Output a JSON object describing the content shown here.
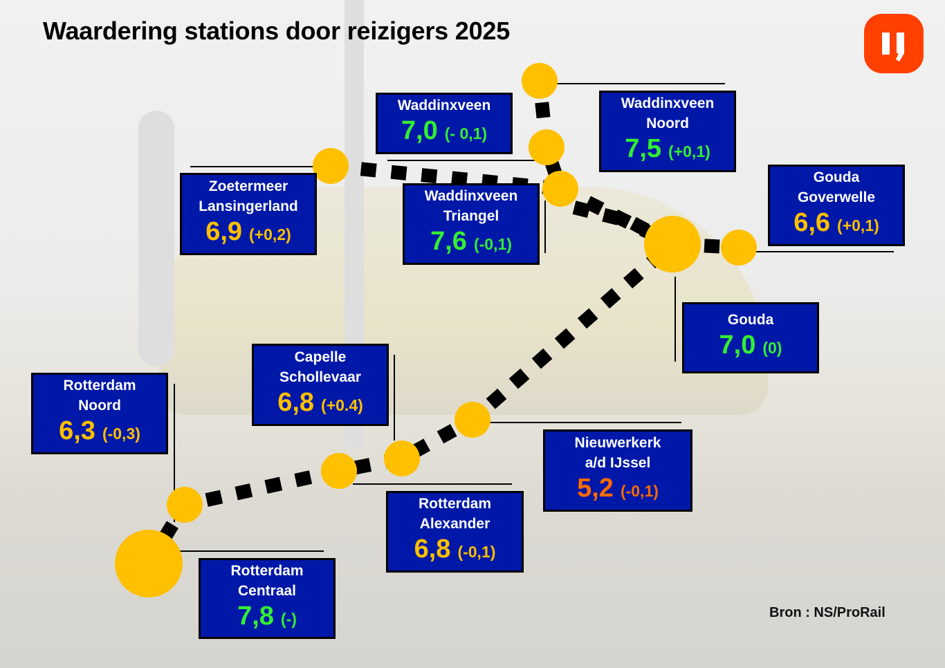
{
  "title": "Waardering stations door reizigers 2025",
  "source": "Bron : NS/ProRail",
  "logo": {
    "icon": "ij-logo-icon",
    "text": "IJ",
    "color": "#ff4000"
  },
  "colors": {
    "box": "#0018a8",
    "green": "#33ee33",
    "yellow": "#ffc000",
    "orange": "#ff6a00",
    "track_dot": "#ffc000"
  },
  "stations": [
    {
      "name": [
        "Waddinxveen"
      ],
      "score": "7,0",
      "change": "(- 0,1)",
      "color": "green"
    },
    {
      "name": [
        "Waddinxveen",
        "Noord"
      ],
      "score": "7,5",
      "change": "(+0,1)",
      "color": "green"
    },
    {
      "name": [
        "Zoetermeer",
        "Lansingerland"
      ],
      "score": "6,9",
      "change": "(+0,2)",
      "color": "yellow"
    },
    {
      "name": [
        "Waddinxveen",
        "Triangel"
      ],
      "score": "7,6",
      "change": "(-0,1)",
      "color": "green"
    },
    {
      "name": [
        "Gouda",
        "Goverwelle"
      ],
      "score": "6,6",
      "change": "(+0,1)",
      "color": "yellow"
    },
    {
      "name": [
        "Gouda"
      ],
      "score": "7,0",
      "change": "(0)",
      "color": "green"
    },
    {
      "name": [
        "Capelle",
        "Schollevaar"
      ],
      "score": "6,8",
      "change": "(+0.4)",
      "color": "yellow"
    },
    {
      "name": [
        "Rotterdam",
        "Noord"
      ],
      "score": "6,3",
      "change": "(-0,3)",
      "color": "yellow"
    },
    {
      "name": [
        "Nieuwerkerk",
        "a/d IJssel"
      ],
      "score": "5,2",
      "change": "(-0,1)",
      "color": "orange"
    },
    {
      "name": [
        "Rotterdam",
        "Alexander"
      ],
      "score": "6,8",
      "change": "(-0,1)",
      "color": "yellow"
    },
    {
      "name": [
        "Rotterdam",
        "Centraal"
      ],
      "score": "7,8",
      "change": "(-)",
      "color": "green"
    }
  ]
}
